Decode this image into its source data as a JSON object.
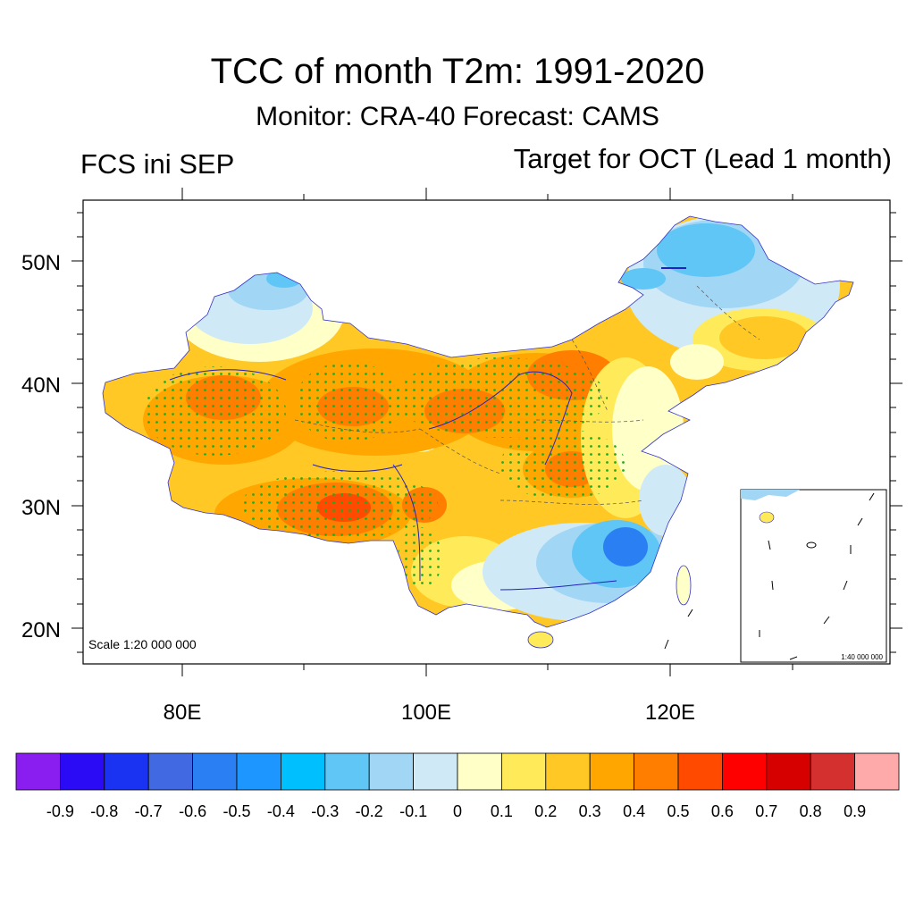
{
  "title": "TCC of month T2m: 1991-2020",
  "subtitle": "Monitor: CRA-40   Forecast: CAMS",
  "left_label": "FCS ini SEP",
  "right_label": "Target for OCT (Lead 1 month)",
  "scale_main": "Scale 1:20 000 000",
  "scale_inset": "1:40 000 000",
  "lat_labels": [
    "50N",
    "40N",
    "30N",
    "20N"
  ],
  "lon_labels": [
    "80E",
    "100E",
    "120E"
  ],
  "colorbar": {
    "colors": [
      "#8a1ef0",
      "#2b0af5",
      "#1a32f2",
      "#4169e1",
      "#2a7ff2",
      "#1e96ff",
      "#00bfff",
      "#5fc6f5",
      "#a2d6f5",
      "#cfe9f7",
      "#ffffc8",
      "#ffea5a",
      "#ffc824",
      "#ffa700",
      "#ff7e00",
      "#ff4a00",
      "#ff0000",
      "#d70000",
      "#d53030",
      "#ffaaaa"
    ],
    "labels": [
      "-0.9",
      "-0.8",
      "-0.7",
      "-0.6",
      "-0.5",
      "-0.4",
      "-0.3",
      "-0.2",
      "-0.1",
      "0",
      "0.1",
      "0.2",
      "0.3",
      "0.4",
      "0.5",
      "0.6",
      "0.7",
      "0.8",
      "0.9"
    ]
  }
}
